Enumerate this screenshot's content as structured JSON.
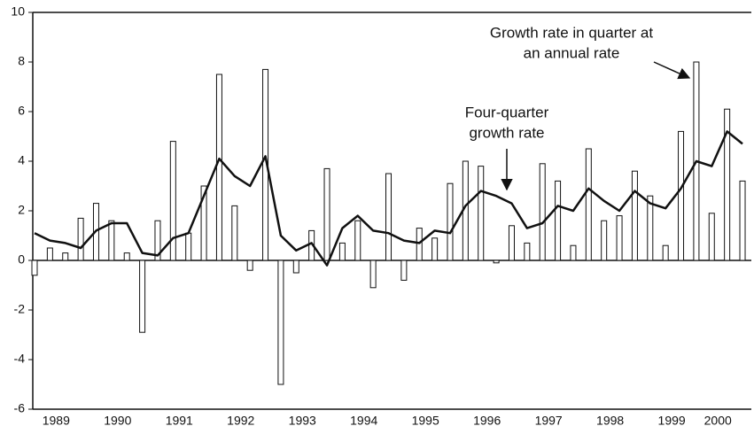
{
  "chart_data": {
    "type": "bar-line",
    "categories": [
      null,
      null,
      null,
      "1989",
      null,
      null,
      null,
      "1990",
      null,
      null,
      null,
      "1991",
      null,
      null,
      null,
      "1992",
      null,
      null,
      null,
      "1993",
      null,
      null,
      null,
      "1994",
      null,
      null,
      null,
      "1995",
      null,
      null,
      null,
      "1996",
      null,
      null,
      null,
      "1997",
      null,
      null,
      null,
      "1998",
      null,
      null,
      null,
      "1999",
      null,
      null,
      "2000"
    ],
    "series": [
      {
        "type": "bar",
        "color": "#ffffff",
        "values": [
          -0.6,
          0.5,
          0.3,
          1.7,
          2.3,
          1.6,
          0.3,
          -2.9,
          1.6,
          4.8,
          1.1,
          3.0,
          7.5,
          2.2,
          -0.4,
          7.7,
          -5.0,
          -0.5,
          1.2,
          3.7,
          0.7,
          1.6,
          -1.1,
          3.5,
          -0.8,
          1.3,
          0.9,
          3.1,
          4.0,
          3.8,
          -0.1,
          1.4,
          0.7,
          3.9,
          3.2,
          0.6,
          4.5,
          1.6,
          1.8,
          3.6,
          2.6,
          0.6,
          5.2,
          8.0,
          1.9,
          6.1,
          3.2
        ]
      },
      {
        "type": "line",
        "color": "#111111",
        "values": [
          1.1,
          0.8,
          0.7,
          0.5,
          1.2,
          1.5,
          1.5,
          0.3,
          0.2,
          0.9,
          1.1,
          2.6,
          4.1,
          3.4,
          3.0,
          4.2,
          1.0,
          0.4,
          0.7,
          -0.2,
          1.3,
          1.8,
          1.2,
          1.1,
          0.8,
          0.7,
          1.2,
          1.1,
          2.2,
          2.8,
          2.6,
          2.3,
          1.3,
          1.5,
          2.2,
          2.0,
          2.9,
          2.4,
          2.0,
          2.8,
          2.3,
          2.1,
          2.9,
          4.0,
          3.8,
          5.2,
          4.7
        ]
      }
    ],
    "annotations": [
      "Growth rate in quarter at",
      "an annual rate",
      "Four-quarter",
      "growth rate"
    ],
    "ylim": [
      -6,
      10
    ],
    "yticks": [
      -6,
      -4,
      -2,
      0,
      2,
      4,
      6,
      8,
      10
    ]
  }
}
